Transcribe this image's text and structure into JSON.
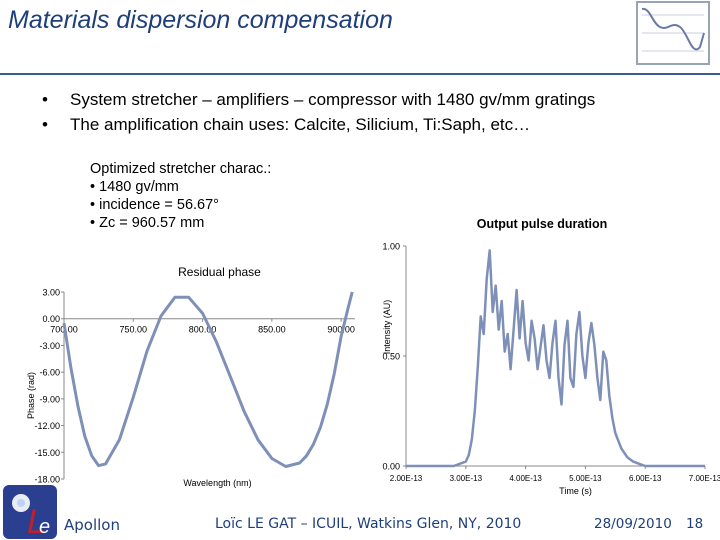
{
  "slide": {
    "title": "Materials dispersion compensation",
    "bullets": [
      {
        "marker": "•",
        "text": "System stretcher – amplifiers – compressor with 1480 gv/mm gratings"
      },
      {
        "marker": "•",
        "text": "The amplification chain uses: Calcite, Silicium, Ti:Saph, etc…"
      }
    ],
    "note_lines": [
      "Optimized stretcher charac.:",
      "• 1480 gv/mm",
      "• incidence = 56.67°",
      "• Zc = 960.57 mm"
    ]
  },
  "footer": {
    "organization": "Apollon",
    "author_event": "Loïc LE GAT – ICUIL, Watkins Glen, NY, 2010",
    "date": "28/09/2010",
    "page_number": "18"
  },
  "colors": {
    "title": "#1f3f7a",
    "rule": "#3a5a93",
    "curve": "#7f90b8",
    "footer": "#1f3f7a"
  },
  "icons": {
    "logo": "phase-curve-logo-icon",
    "apollon": "apollon-laser-logo-icon"
  },
  "chart_data": [
    {
      "type": "line",
      "title": "Residual phase",
      "xlabel": "Wavelength (nm)",
      "ylabel": "Phase (rad)",
      "xlim": [
        700,
        910
      ],
      "ylim": [
        -18,
        3
      ],
      "x_ticks": [
        "700.00",
        "750.00",
        "800.00",
        "850.00",
        "900.00"
      ],
      "y_ticks": [
        "3.00",
        "0.00",
        "-3.00",
        "-6.00",
        "-9.00",
        "-12.00",
        "-15.00",
        "-18.00"
      ],
      "series": [
        {
          "x": [
            700,
            705,
            710,
            715,
            720,
            725,
            730,
            740,
            750,
            760,
            770,
            780,
            790,
            800,
            810,
            820,
            830,
            840,
            850,
            860,
            870,
            875,
            880,
            885,
            890,
            895,
            900,
            905,
            908
          ],
          "y": [
            -0.5,
            -5.5,
            -9.8,
            -13.2,
            -15.4,
            -16.5,
            -16.3,
            -13.6,
            -8.8,
            -3.6,
            0.3,
            2.4,
            2.4,
            0.6,
            -2.6,
            -6.5,
            -10.4,
            -13.6,
            -15.7,
            -16.6,
            -16.2,
            -15.4,
            -14.1,
            -12.2,
            -9.6,
            -6.2,
            -2.0,
            1.2,
            3.0
          ]
        }
      ],
      "grid": false,
      "legend": "none"
    },
    {
      "type": "line",
      "title": "Output pulse duration",
      "xlabel": "Time (s)",
      "ylabel": "Intensity (AU)",
      "xlim": [
        2e-13,
        7e-13
      ],
      "ylim": [
        0,
        1
      ],
      "x_ticks": [
        "2.00E-13",
        "3.00E-13",
        "4.00E-13",
        "5.00E-13",
        "6.00E-13",
        "7.00E-13"
      ],
      "y_ticks": [
        "0.00",
        "0.50",
        "1.00"
      ],
      "series": [
        {
          "x": [
            2e-13,
            2.5e-13,
            2.8e-13,
            3e-13,
            3.05e-13,
            3.1e-13,
            3.15e-13,
            3.2e-13,
            3.25e-13,
            3.3e-13,
            3.35e-13,
            3.4e-13,
            3.45e-13,
            3.5e-13,
            3.55e-13,
            3.6e-13,
            3.65e-13,
            3.7e-13,
            3.75e-13,
            3.8e-13,
            3.85e-13,
            3.9e-13,
            3.95e-13,
            4e-13,
            4.05e-13,
            4.1e-13,
            4.15e-13,
            4.2e-13,
            4.25e-13,
            4.3e-13,
            4.35e-13,
            4.4e-13,
            4.45e-13,
            4.5e-13,
            4.55e-13,
            4.6e-13,
            4.65e-13,
            4.7e-13,
            4.75e-13,
            4.8e-13,
            4.85e-13,
            4.9e-13,
            4.95e-13,
            5e-13,
            5.05e-13,
            5.1e-13,
            5.15e-13,
            5.2e-13,
            5.25e-13,
            5.3e-13,
            5.35e-13,
            5.4e-13,
            5.45e-13,
            5.5e-13,
            5.6e-13,
            5.7e-13,
            5.8e-13,
            5.9e-13,
            6e-13,
            6.5e-13,
            7e-13
          ],
          "y": [
            0.0,
            0.0,
            0.0,
            0.02,
            0.05,
            0.12,
            0.25,
            0.45,
            0.68,
            0.6,
            0.85,
            0.98,
            0.7,
            0.82,
            0.62,
            0.75,
            0.52,
            0.6,
            0.44,
            0.62,
            0.8,
            0.58,
            0.75,
            0.56,
            0.48,
            0.66,
            0.58,
            0.44,
            0.54,
            0.64,
            0.48,
            0.4,
            0.56,
            0.66,
            0.4,
            0.28,
            0.55,
            0.66,
            0.4,
            0.36,
            0.6,
            0.7,
            0.5,
            0.4,
            0.56,
            0.65,
            0.55,
            0.4,
            0.3,
            0.52,
            0.48,
            0.32,
            0.22,
            0.15,
            0.08,
            0.04,
            0.02,
            0.01,
            0.0,
            0.0,
            0.0
          ]
        }
      ],
      "grid": false,
      "legend": "none"
    }
  ]
}
